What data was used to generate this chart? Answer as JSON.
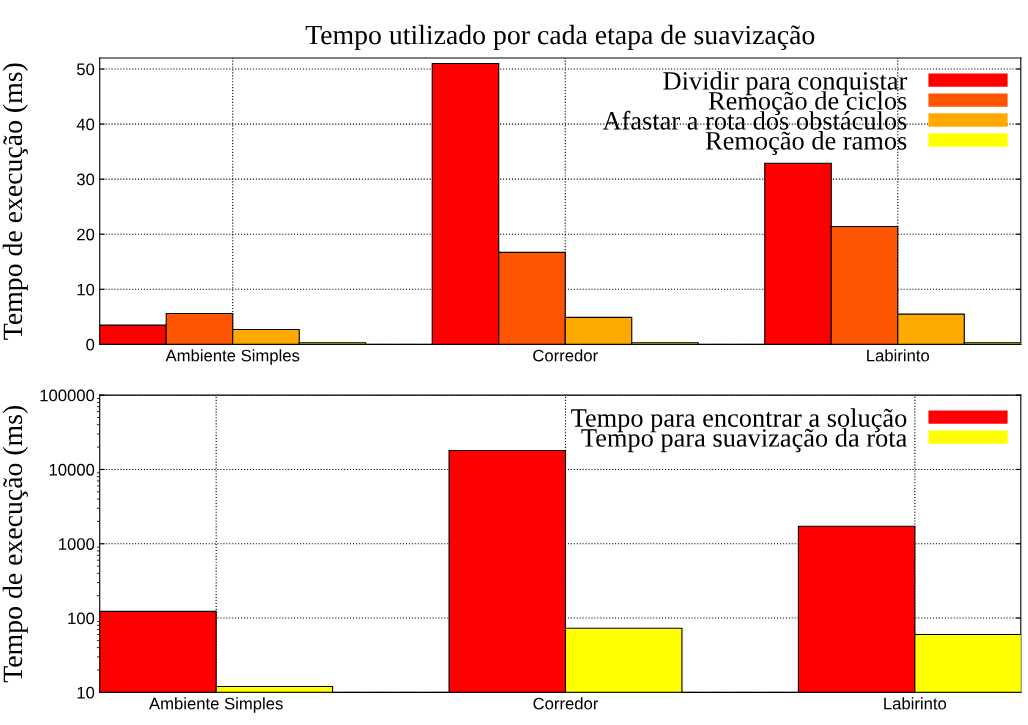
{
  "chart_data": [
    {
      "type": "bar",
      "title": "Tempo utilizado por cada etapa de suavização",
      "ylabel": "Tempo de execução (ms)",
      "categories": [
        "Ambiente Simples",
        "Corredor",
        "Labirinto"
      ],
      "series": [
        {
          "name": "Dividir para conquistar",
          "color": "#ff0000",
          "values": [
            3.5,
            51.0,
            32.9
          ]
        },
        {
          "name": "Remoção de ciclos",
          "color": "#ff5500",
          "values": [
            5.6,
            16.7,
            21.4
          ]
        },
        {
          "name": "Afastar a rota dos obstáculos",
          "color": "#ffaa00",
          "values": [
            2.7,
            4.9,
            5.5
          ]
        },
        {
          "name": "Remoção de ramos",
          "color": "#ffff00",
          "values": [
            0.3,
            0.3,
            0.3
          ]
        }
      ],
      "ylim": [
        0,
        52
      ],
      "yticks": [
        0,
        10,
        20,
        30,
        40,
        50
      ],
      "grid": true,
      "legend": "top right"
    },
    {
      "type": "bar",
      "ylabel": "Tempo de execução (ms)",
      "log": true,
      "categories": [
        "Ambiente Simples",
        "Corredor",
        "Labirinto"
      ],
      "series": [
        {
          "name": "Tempo para encontrar a solução",
          "color": "#ff0000",
          "values": [
            123,
            18000,
            1720
          ]
        },
        {
          "name": "Tempo para suavização da rota",
          "color": "#ffff00",
          "values": [
            12,
            73,
            60
          ]
        }
      ],
      "ylim": [
        10,
        100000
      ],
      "yticks": [
        10,
        100,
        1000,
        10000,
        100000
      ],
      "grid": true,
      "legend": "top right"
    }
  ]
}
